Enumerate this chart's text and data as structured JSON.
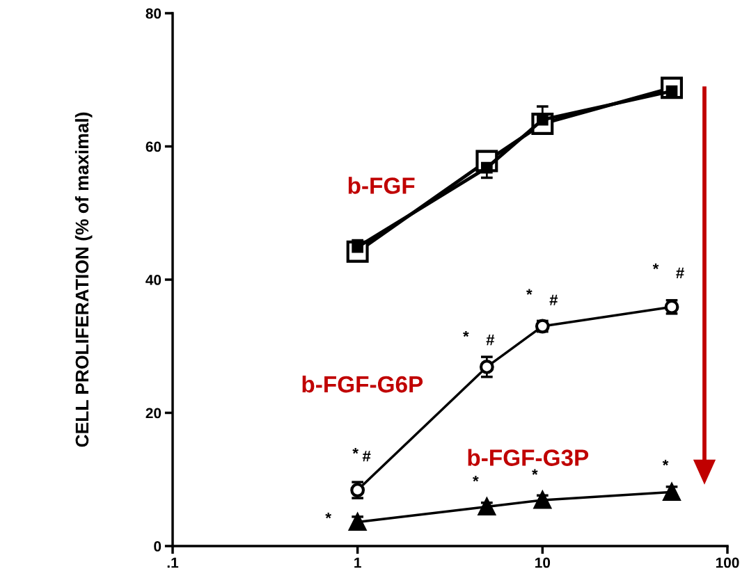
{
  "chart_data": {
    "type": "line",
    "ylabel": "CELL PROLIFERATION (% of maximal)",
    "log": "x",
    "xlim": [
      0.1,
      100
    ],
    "xticks": [
      {
        "value": 0.1,
        "label": ".1"
      },
      1,
      10,
      100
    ],
    "ylim": [
      0,
      80
    ],
    "yticks": [
      0,
      20,
      40,
      60,
      80
    ],
    "grid": false,
    "x": [
      1,
      5,
      10,
      50
    ],
    "series": [
      {
        "name": "b-FGF",
        "color": "#000000",
        "marker": "square",
        "values": [
          44.2,
          57.8,
          63.4,
          68.8
        ]
      },
      {
        "color": "#000000",
        "marker": "square",
        "values": [
          44.9,
          56.8,
          64.0,
          68.3
        ],
        "errors": [
          1.0,
          1.5,
          2.0,
          0.8
        ]
      },
      {
        "name": "b-FGF-G6P",
        "color": "#000000",
        "marker": "circle",
        "values": [
          8.4,
          26.9,
          33.0,
          35.9
        ],
        "errors": [
          1.2,
          1.5,
          0.8,
          1.0
        ]
      },
      {
        "name": "b-FGF-G3P",
        "color": "#000000",
        "marker": "triangle",
        "values": [
          3.6,
          5.9,
          6.9,
          8.1
        ],
        "errors": [
          0.8,
          0.6,
          0.7,
          0.8
        ]
      }
    ],
    "annotations": [
      "*",
      "#",
      "*",
      "*",
      "#",
      "*",
      "*",
      "#",
      "*",
      "*",
      "#",
      "*"
    ]
  }
}
